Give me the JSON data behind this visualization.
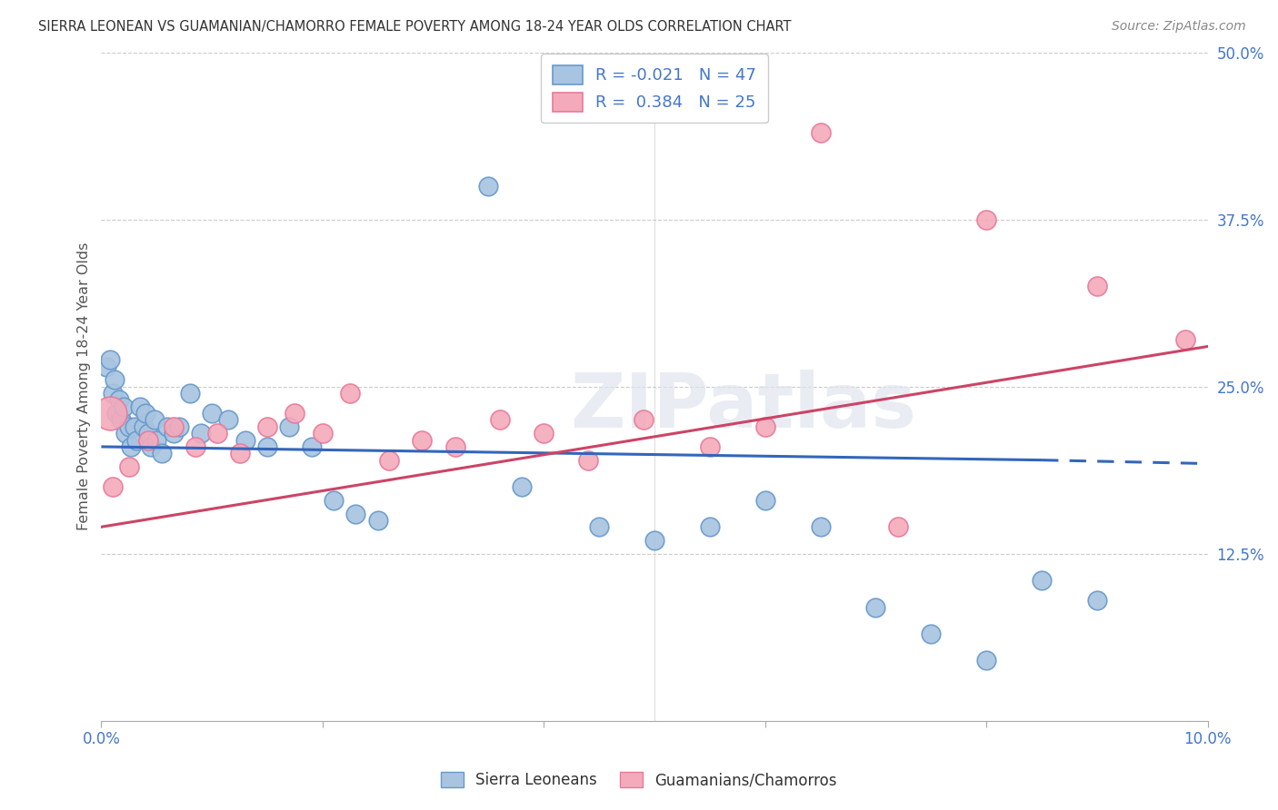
{
  "title": "SIERRA LEONEAN VS GUAMANIAN/CHAMORRO FEMALE POVERTY AMONG 18-24 YEAR OLDS CORRELATION CHART",
  "source": "Source: ZipAtlas.com",
  "ylabel": "Female Poverty Among 18-24 Year Olds",
  "xlim": [
    0.0,
    10.0
  ],
  "ylim": [
    0.0,
    50.0
  ],
  "yticks": [
    0.0,
    12.5,
    25.0,
    37.5,
    50.0
  ],
  "xticks": [
    0.0,
    2.0,
    4.0,
    6.0,
    8.0,
    10.0
  ],
  "blue_color": "#A8C4E0",
  "pink_color": "#F4AABB",
  "blue_edge": "#6699CC",
  "pink_edge": "#E87A9A",
  "blue_label": "Sierra Leoneans",
  "pink_label": "Guamanians/Chamorros",
  "watermark": "ZIPatlas",
  "tick_label_color": "#4477CC",
  "ylabel_color": "#555555",
  "title_color": "#333333",
  "source_color": "#888888",
  "blue_scatter_x": [
    0.05,
    0.08,
    0.1,
    0.12,
    0.14,
    0.16,
    0.18,
    0.2,
    0.22,
    0.25,
    0.27,
    0.3,
    0.32,
    0.35,
    0.38,
    0.4,
    0.42,
    0.45,
    0.48,
    0.5,
    0.55,
    0.6,
    0.65,
    0.7,
    0.8,
    0.9,
    1.0,
    1.15,
    1.3,
    1.5,
    1.7,
    1.9,
    2.1,
    2.3,
    2.5,
    3.5,
    3.8,
    4.5,
    5.0,
    5.5,
    6.0,
    6.5,
    7.0,
    7.5,
    8.0,
    8.5,
    9.0
  ],
  "blue_scatter_y": [
    26.5,
    27.0,
    24.5,
    25.5,
    23.0,
    24.0,
    22.5,
    23.5,
    21.5,
    22.0,
    20.5,
    22.0,
    21.0,
    23.5,
    22.0,
    23.0,
    21.5,
    20.5,
    22.5,
    21.0,
    20.0,
    22.0,
    21.5,
    22.0,
    24.5,
    21.5,
    23.0,
    22.5,
    21.0,
    20.5,
    22.0,
    20.5,
    16.5,
    15.5,
    15.0,
    40.0,
    17.5,
    14.5,
    13.5,
    14.5,
    16.5,
    14.5,
    8.5,
    6.5,
    4.5,
    10.5,
    9.0
  ],
  "pink_scatter_x": [
    0.1,
    0.25,
    0.42,
    0.65,
    0.85,
    1.05,
    1.25,
    1.5,
    1.75,
    2.0,
    2.25,
    2.6,
    2.9,
    3.2,
    3.6,
    4.0,
    4.4,
    4.9,
    5.5,
    6.0,
    6.5,
    7.2,
    8.0,
    9.0,
    9.8
  ],
  "pink_scatter_y": [
    17.5,
    19.0,
    21.0,
    22.0,
    20.5,
    21.5,
    20.0,
    22.0,
    23.0,
    21.5,
    24.5,
    19.5,
    21.0,
    20.5,
    22.5,
    21.5,
    19.5,
    22.5,
    20.5,
    22.0,
    44.0,
    14.5,
    37.5,
    32.5,
    28.5
  ],
  "pink_big_x": 0.08,
  "pink_big_y": 23.0,
  "blue_line_x0": 0.0,
  "blue_line_y0": 20.5,
  "blue_line_x1": 8.5,
  "blue_line_y1": 19.5,
  "blue_dash_x0": 8.5,
  "blue_dash_y0": 19.5,
  "blue_dash_x1": 10.2,
  "blue_dash_y1": 19.2,
  "pink_line_x0": 0.0,
  "pink_line_y0": 14.5,
  "pink_line_x1": 10.0,
  "pink_line_y1": 28.0
}
